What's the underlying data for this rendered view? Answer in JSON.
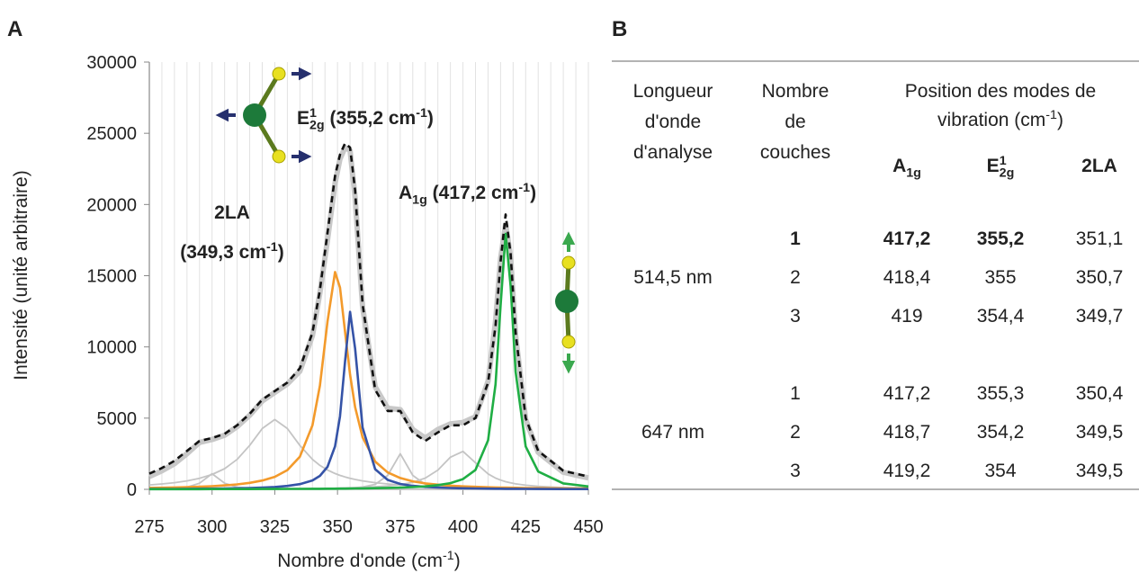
{
  "panel_labels": [
    "A",
    "B"
  ],
  "chart_data": {
    "type": "line",
    "x": [
      275,
      280,
      285,
      290,
      295,
      300,
      305,
      310,
      315,
      320,
      325,
      330,
      335,
      340,
      343,
      346,
      349,
      351,
      353,
      355,
      357,
      360,
      365,
      370,
      375,
      380,
      385,
      390,
      395,
      400,
      405,
      410,
      413,
      415,
      417,
      419,
      421,
      425,
      430,
      440,
      450
    ],
    "xlim": [
      275,
      450
    ],
    "xticks": [
      275,
      300,
      325,
      350,
      375,
      400,
      425,
      450
    ],
    "xgrid": [
      275,
      280,
      285,
      290,
      295,
      300,
      305,
      310,
      315,
      320,
      325,
      330,
      335,
      340,
      345,
      350,
      355,
      360,
      365,
      370,
      375,
      380,
      385,
      390,
      395,
      400,
      405,
      410,
      415,
      420,
      425,
      430,
      435,
      440,
      445,
      450
    ],
    "ylim": [
      0,
      30000
    ],
    "yticks": [
      0,
      5000,
      10000,
      15000,
      20000,
      25000,
      30000
    ],
    "x_label": [
      {
        "t": "Nombre d'onde (cm"
      },
      {
        "t": "-1",
        "s": "sup"
      },
      {
        "t": ")"
      }
    ],
    "y_label": "Intensité (unité arbitraire)",
    "series": [
      {
        "color": "#c4c4c4",
        "style": "thin",
        "values": [
          27,
          42,
          73,
          152,
          430,
          1100,
          430,
          152,
          73,
          42,
          27,
          19,
          14,
          11,
          9,
          8,
          7,
          7,
          6,
          6,
          5,
          5,
          4,
          4,
          3,
          3,
          2,
          2,
          2,
          2,
          2,
          2,
          2,
          1,
          1,
          1,
          1,
          1,
          1,
          1,
          1
        ]
      },
      {
        "color": "#c4c4c4",
        "style": "thin",
        "values": [
          310,
          377,
          468,
          594,
          774,
          1043,
          1454,
          2103,
          3082,
          4268,
          4900,
          4268,
          3082,
          2103,
          1678,
          1357,
          1111,
          980,
          869,
          774,
          694,
          594,
          468,
          377,
          310,
          259,
          220,
          188,
          163,
          143,
          126,
          112,
          105,
          100,
          96,
          92,
          88,
          81,
          74,
          62,
          52
        ]
      },
      {
        "color": "#c4c4c4",
        "style": "thin",
        "values": [
          4,
          4,
          5,
          5,
          6,
          7,
          8,
          9,
          11,
          13,
          16,
          20,
          25,
          32,
          38,
          47,
          58,
          68,
          80,
          96,
          118,
          166,
          345,
          977,
          2500,
          977,
          345,
          166,
          96,
          62,
          44,
          32,
          27,
          25,
          22,
          21,
          19,
          16,
          13,
          9,
          7
        ]
      },
      {
        "color": "#c4c4c4",
        "style": "thin",
        "values": [
          14,
          15,
          17,
          18,
          20,
          22,
          25,
          27,
          31,
          35,
          39,
          45,
          52,
          61,
          68,
          76,
          85,
          92,
          100,
          108,
          118,
          136,
          177,
          237,
          333,
          495,
          789,
          1350,
          2254,
          2667,
          1870,
          1084,
          789,
          649,
          540,
          455,
          387,
          289,
          210,
          124,
          82
        ]
      },
      {
        "color": "#c8c8c8",
        "style": "thick",
        "values": [
          900,
          1300,
          1800,
          2500,
          3300,
          3500,
          3800,
          4400,
          5200,
          6200,
          6800,
          7400,
          8300,
          10800,
          13800,
          17500,
          21500,
          23200,
          24000,
          23800,
          20500,
          12800,
          7200,
          5700,
          5600,
          4200,
          3600,
          4200,
          4600,
          4700,
          5100,
          7600,
          11800,
          16200,
          18600,
          16300,
          10800,
          4900,
          2600,
          1200,
          800
        ]
      },
      {
        "color": "#f39a2b",
        "style": "normal",
        "values": [
          99,
          114,
          132,
          155,
          185,
          223,
          276,
          349,
          454,
          617,
          879,
          1354,
          2290,
          4500,
          7286,
          11770,
          15262,
          14167,
          11087,
          8053,
          5774,
          3660,
          1949,
          1186,
          793,
          563,
          420,
          326,
          259,
          211,
          175,
          148,
          134,
          127,
          119,
          113,
          106,
          96,
          84,
          67,
          54
        ]
      },
      {
        "color": "#3553a7",
        "style": "normal",
        "values": [
          24,
          27,
          31,
          36,
          42,
          50,
          61,
          75,
          94,
          123,
          166,
          237,
          364,
          628,
          947,
          1580,
          3019,
          5123,
          8961,
          12462,
          9889,
          4340,
          1414,
          661,
          379,
          244,
          170,
          125,
          96,
          76,
          61,
          51,
          46,
          43,
          40,
          38,
          35,
          31,
          27,
          21,
          17
        ]
      },
      {
        "color": "#1fae44",
        "style": "normal",
        "values": [
          11,
          12,
          13,
          14,
          15,
          16,
          17,
          19,
          21,
          23,
          26,
          29,
          33,
          37,
          40,
          43,
          47,
          50,
          53,
          57,
          61,
          67,
          81,
          99,
          123,
          158,
          210,
          294,
          437,
          717,
          1364,
          3442,
          7377,
          12903,
          17946,
          14241,
          8257,
          3015,
          1250,
          415,
          203
        ]
      },
      {
        "color": "#111111",
        "style": "dashed",
        "values": [
          1100,
          1500,
          2000,
          2700,
          3400,
          3600,
          3900,
          4500,
          5300,
          6300,
          6900,
          7500,
          8500,
          11000,
          14000,
          18000,
          22000,
          23500,
          24300,
          24000,
          21000,
          13000,
          7000,
          5500,
          5500,
          4000,
          3400,
          4000,
          4500,
          4500,
          5000,
          7500,
          11500,
          16000,
          19300,
          16500,
          11000,
          5000,
          2700,
          1300,
          900
        ]
      }
    ],
    "annotations": [
      {
        "color": "#f39a2b",
        "runs": [
          {
            "t": "2LA"
          }
        ]
      },
      {
        "color": "#f39a2b",
        "runs": [
          {
            "t": "(349,3 cm"
          },
          {
            "t": "-1",
            "s": "sup"
          },
          {
            "t": ")"
          }
        ]
      },
      {
        "color": "#3553a7",
        "runs": [
          {
            "t": "E"
          },
          {
            "t": "1",
            "s": "sup"
          },
          {
            "t": "2g",
            "s": "sub"
          },
          {
            "t": " (355,2 cm"
          },
          {
            "t": "-1",
            "s": "sup"
          },
          {
            "t": ")"
          }
        ]
      },
      {
        "color": "#1fae44",
        "runs": [
          {
            "t": "A"
          },
          {
            "t": "1g",
            "s": "sub"
          },
          {
            "t": " (417,2 cm"
          },
          {
            "t": "-1",
            "s": "sup"
          },
          {
            "t": ")"
          }
        ]
      }
    ]
  },
  "table": {
    "columns": [
      [
        "Longueur",
        "d'onde",
        "d'analyse"
      ],
      [
        "Nombre",
        "de",
        "couches"
      ]
    ],
    "group_header": [
      [
        {
          "t": "Position des modes de"
        }
      ],
      [
        {
          "t": "vibration (cm"
        },
        {
          "t": "-1",
          "s": "sup"
        },
        {
          "t": ")"
        }
      ]
    ],
    "modes": [
      [
        {
          "t": "A"
        },
        {
          "t": "1g",
          "s": "sub"
        }
      ],
      [
        {
          "t": "E"
        },
        {
          "t": "1",
          "s": "sup"
        },
        {
          "t": "2g",
          "s": "sub"
        }
      ],
      [
        {
          "t": "2LA"
        }
      ]
    ],
    "groups": [
      {
        "wavelength": "514,5 nm",
        "rows": [
          {
            "cells": [
              "1",
              "417,2",
              "355,2",
              "351,1"
            ],
            "bold": [
              true,
              true,
              true,
              false
            ]
          },
          {
            "cells": [
              "2",
              "418,4",
              "355",
              "350,7"
            ],
            "bold": [
              false,
              false,
              false,
              false
            ]
          },
          {
            "cells": [
              "3",
              "419",
              "354,4",
              "349,7"
            ],
            "bold": [
              false,
              false,
              false,
              false
            ]
          }
        ]
      },
      {
        "wavelength": "647 nm",
        "rows": [
          {
            "cells": [
              "1",
              "417,2",
              "355,3",
              "350,4"
            ],
            "bold": [
              false,
              false,
              false,
              false
            ]
          },
          {
            "cells": [
              "2",
              "418,7",
              "354,2",
              "349,5"
            ],
            "bold": [
              false,
              false,
              false,
              false
            ]
          },
          {
            "cells": [
              "3",
              "419,2",
              "354",
              "349,5"
            ],
            "bold": [
              false,
              false,
              false,
              false
            ]
          }
        ]
      }
    ]
  }
}
